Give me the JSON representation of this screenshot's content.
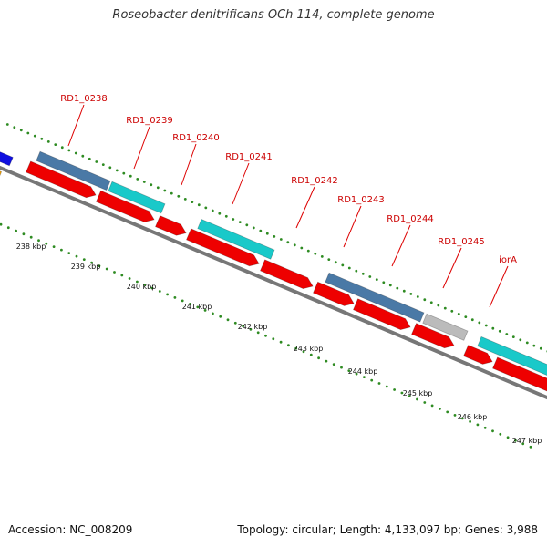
{
  "title": "Roseobacter denitrificans OCh 114, complete genome",
  "footer": {
    "accession": "Accession: NC_008209",
    "summary": "Topology: circular; Length: 4,133,097 bp; Genes: 3,988"
  },
  "colors": {
    "backbone": "#777777",
    "tick": "#2e8b22",
    "label": "#cc0000",
    "leader": "#dd0000",
    "cds_red": "#ee0000",
    "gene_blue": "#4a79a6",
    "gene_cyan": "#19c9c9",
    "gene_gray": "#bbbbbb"
  },
  "scale_labels": [
    "238 kbp",
    "239 kbp",
    "240 kbp",
    "241 kbp",
    "242 kbp",
    "243 kbp",
    "244 kbp",
    "245 kbp",
    "246 kbp",
    "247 kbp"
  ],
  "gene_labels": [
    "RD1_0238",
    "RD1_0239",
    "RD1_0240",
    "RD1_0241",
    "RD1_0242",
    "RD1_0243",
    "RD1_0244",
    "RD1_0245",
    "iorA"
  ]
}
